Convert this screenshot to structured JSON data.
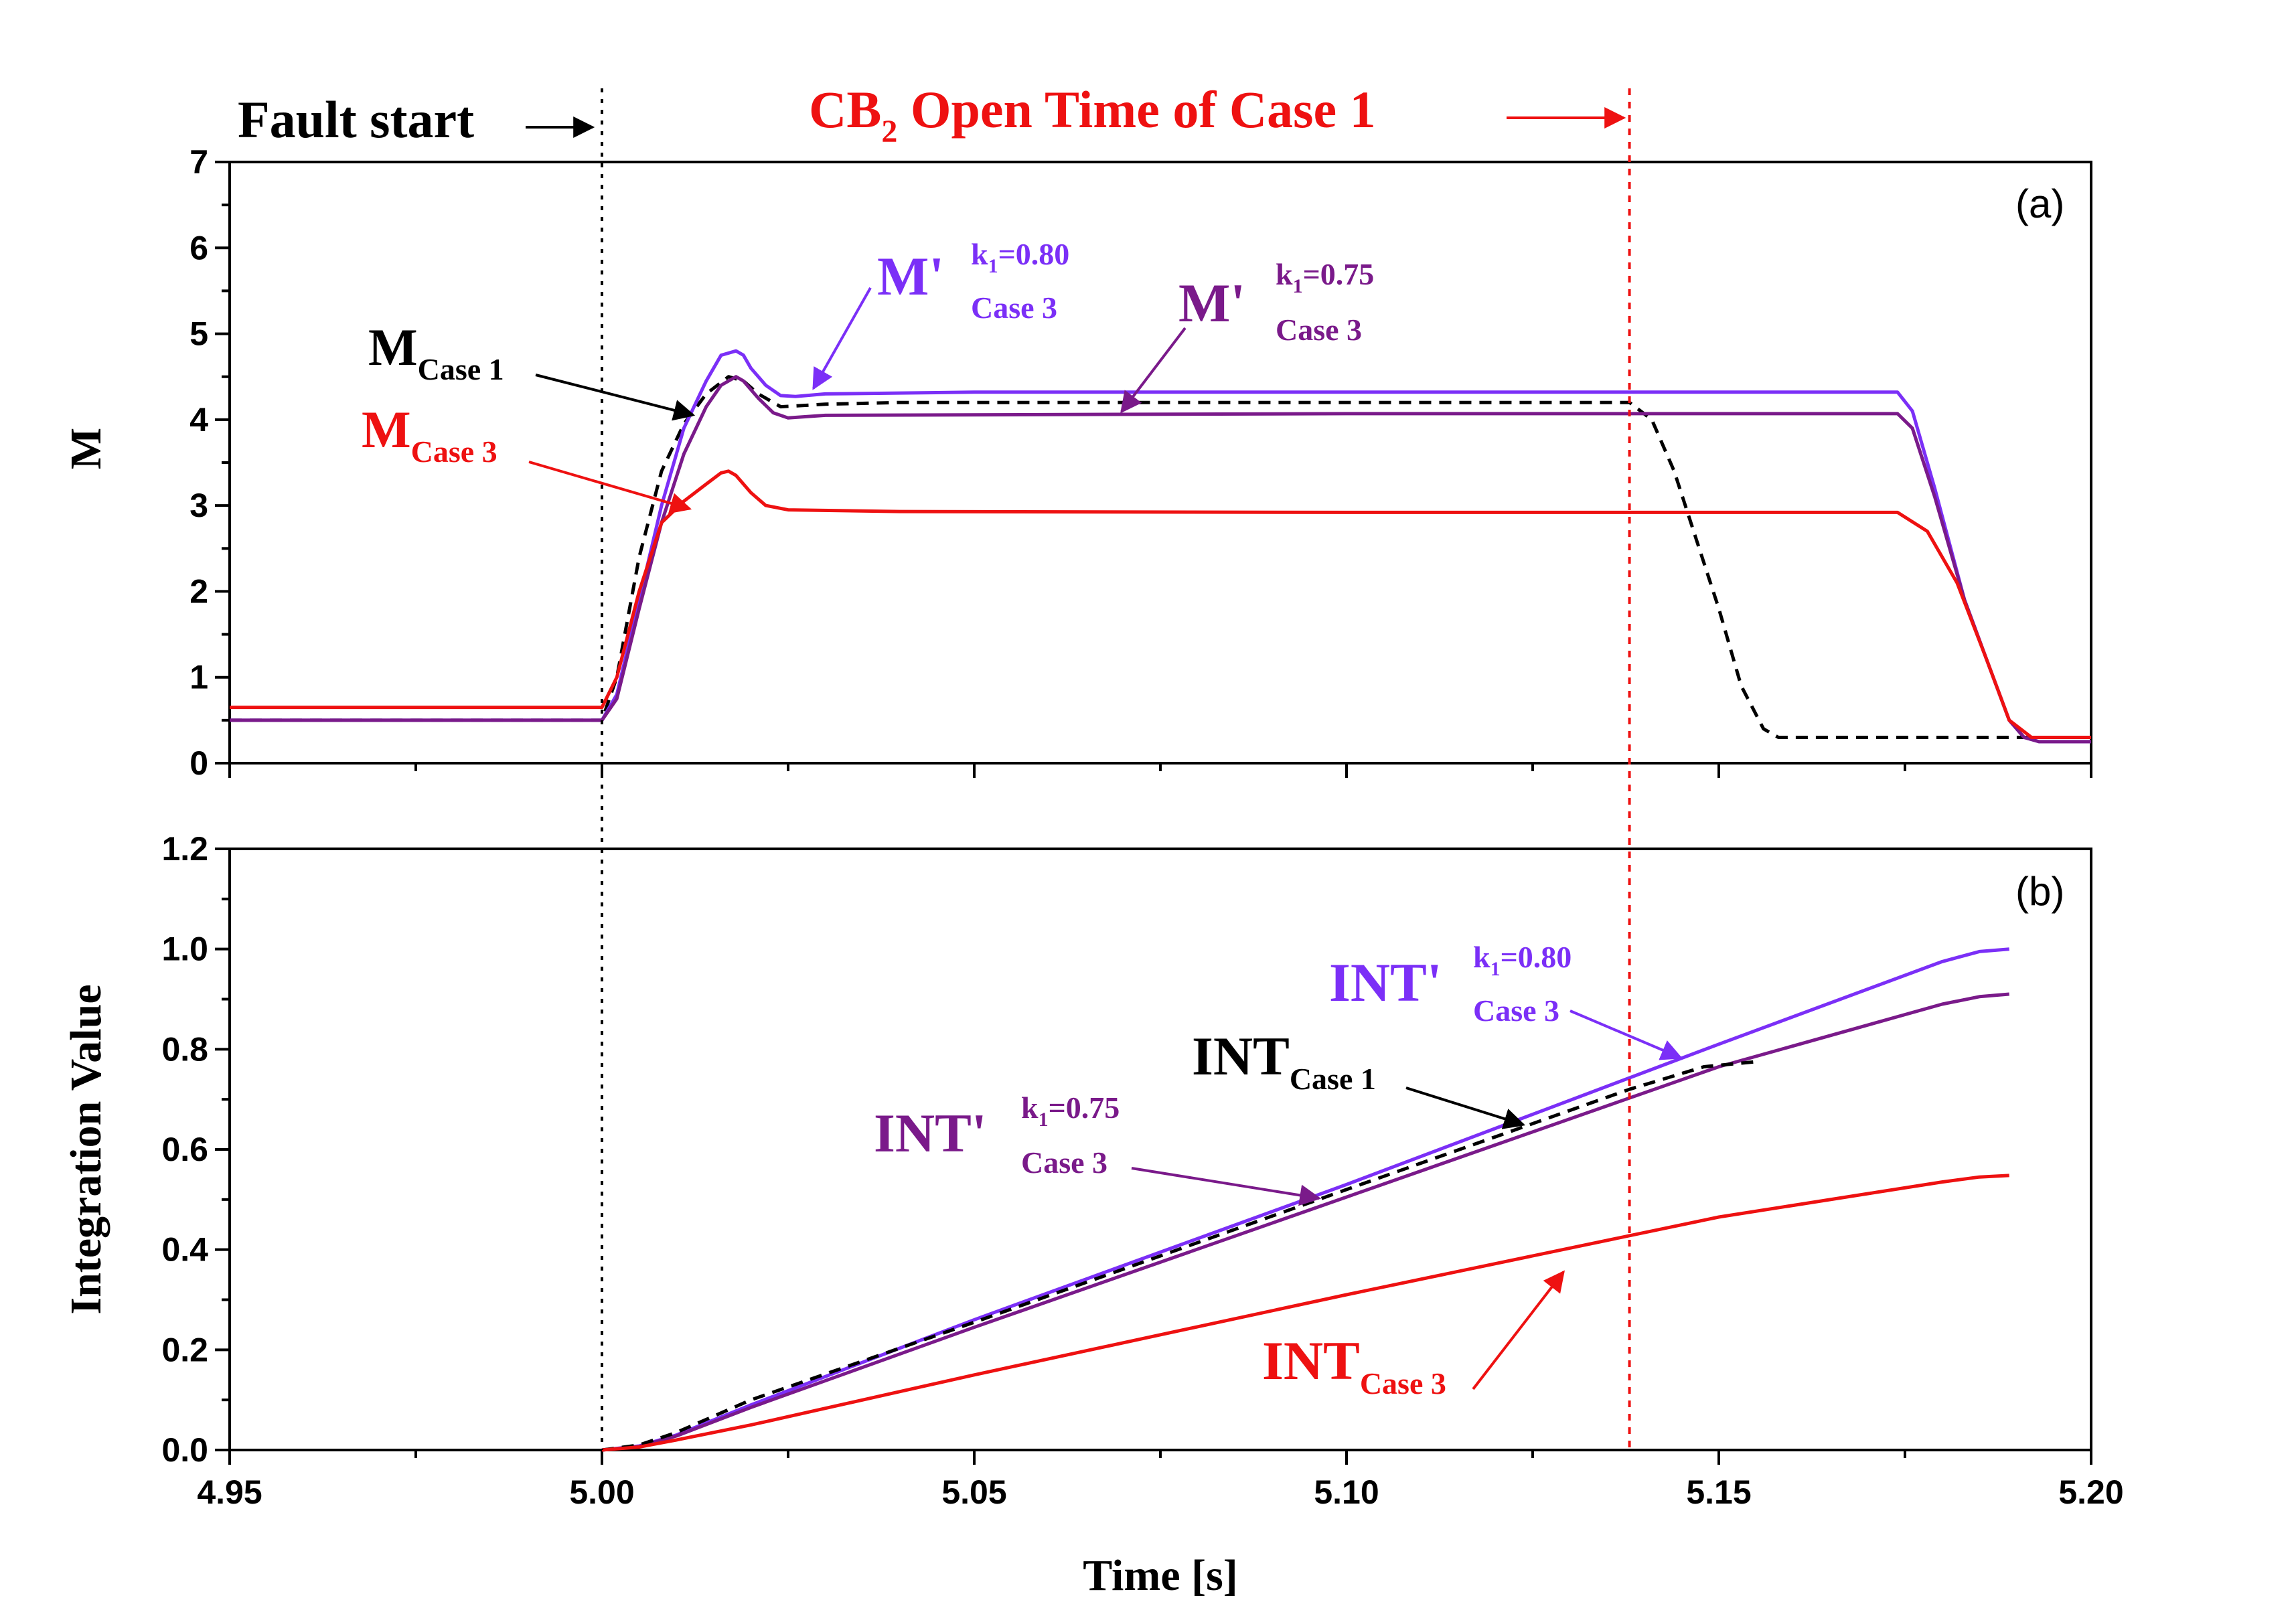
{
  "chart_data": [
    {
      "panel": "(a)",
      "type": "line",
      "xlabel": "",
      "ylabel": "M",
      "xlim": [
        4.95,
        5.2
      ],
      "ylim": [
        0,
        7
      ],
      "yticks": [
        "0",
        "1",
        "2",
        "3",
        "4",
        "5",
        "6",
        "7"
      ],
      "grid": false,
      "series": [
        {
          "id": "m_case1",
          "color": "#000000",
          "dash": true,
          "x": [
            4.95,
            5.0,
            5.002,
            5.005,
            5.008,
            5.011,
            5.014,
            5.017,
            5.019,
            5.021,
            5.024,
            5.03,
            5.04,
            5.1,
            5.138,
            5.141,
            5.144,
            5.147,
            5.15,
            5.153,
            5.156,
            5.158,
            5.2
          ],
          "y": [
            0.5,
            0.5,
            1.0,
            2.4,
            3.4,
            3.95,
            4.3,
            4.5,
            4.45,
            4.3,
            4.15,
            4.18,
            4.2,
            4.2,
            4.2,
            4.0,
            3.4,
            2.6,
            1.8,
            0.9,
            0.4,
            0.3,
            0.3
          ]
        },
        {
          "id": "m_prime_080",
          "color": "#7b2ff7",
          "dash": false,
          "x": [
            4.95,
            5.0,
            5.002,
            5.005,
            5.008,
            5.011,
            5.014,
            5.016,
            5.018,
            5.019,
            5.02,
            5.022,
            5.024,
            5.026,
            5.03,
            5.05,
            5.1,
            5.174,
            5.176,
            5.179,
            5.183,
            5.186,
            5.189,
            5.191,
            5.193,
            5.2
          ],
          "y": [
            0.5,
            0.5,
            0.8,
            1.9,
            3.0,
            3.9,
            4.45,
            4.75,
            4.8,
            4.75,
            4.6,
            4.4,
            4.28,
            4.27,
            4.3,
            4.32,
            4.32,
            4.32,
            4.1,
            3.2,
            1.9,
            1.2,
            0.5,
            0.3,
            0.25,
            0.25
          ]
        },
        {
          "id": "m_prime_075",
          "color": "#7a1a8a",
          "dash": false,
          "x": [
            4.95,
            5.0,
            5.002,
            5.005,
            5.008,
            5.011,
            5.014,
            5.016,
            5.018,
            5.019,
            5.021,
            5.023,
            5.025,
            5.03,
            5.1,
            5.174,
            5.176,
            5.179,
            5.183,
            5.186,
            5.189,
            5.191,
            5.193,
            5.2
          ],
          "y": [
            0.5,
            0.5,
            0.75,
            1.8,
            2.8,
            3.6,
            4.15,
            4.4,
            4.5,
            4.45,
            4.25,
            4.08,
            4.02,
            4.05,
            4.07,
            4.07,
            3.9,
            3.1,
            1.9,
            1.2,
            0.5,
            0.3,
            0.25,
            0.25
          ]
        },
        {
          "id": "m_case3",
          "color": "#ee1111",
          "dash": false,
          "x": [
            4.95,
            5.0,
            5.002,
            5.005,
            5.008,
            5.011,
            5.014,
            5.016,
            5.017,
            5.018,
            5.02,
            5.022,
            5.025,
            5.04,
            5.1,
            5.174,
            5.178,
            5.182,
            5.186,
            5.189,
            5.192,
            5.2
          ],
          "y": [
            0.65,
            0.65,
            1.0,
            2.0,
            2.8,
            3.05,
            3.25,
            3.38,
            3.4,
            3.35,
            3.15,
            3.0,
            2.95,
            2.93,
            2.92,
            2.92,
            2.7,
            2.1,
            1.2,
            0.5,
            0.3,
            0.3
          ]
        }
      ]
    },
    {
      "panel": "(b)",
      "type": "line",
      "xlabel": "Time [s]",
      "ylabel": "Integration Value",
      "xlim": [
        4.95,
        5.2
      ],
      "ylim": [
        0,
        1.2
      ],
      "xticks": [
        "4.95",
        "5.00",
        "5.05",
        "5.10",
        "5.15",
        "5.20"
      ],
      "yticks": [
        "0.0",
        "0.2",
        "0.4",
        "0.6",
        "0.8",
        "1.0",
        "1.2"
      ],
      "grid": false,
      "series": [
        {
          "id": "int_prime_080",
          "color": "#7b2ff7",
          "dash": false,
          "x": [
            5.0,
            5.005,
            5.01,
            5.02,
            5.05,
            5.1,
            5.15,
            5.18,
            5.185,
            5.189
          ],
          "y": [
            0.0,
            0.008,
            0.03,
            0.09,
            0.26,
            0.53,
            0.81,
            0.975,
            0.995,
            1.0
          ]
        },
        {
          "id": "int_prime_075",
          "color": "#7a1a8a",
          "dash": false,
          "x": [
            5.0,
            5.005,
            5.01,
            5.02,
            5.05,
            5.1,
            5.15,
            5.18,
            5.185,
            5.189
          ],
          "y": [
            0.0,
            0.007,
            0.028,
            0.085,
            0.245,
            0.505,
            0.765,
            0.89,
            0.905,
            0.91
          ]
        },
        {
          "id": "int_case1",
          "color": "#000000",
          "dash": true,
          "x": [
            5.0,
            5.005,
            5.01,
            5.02,
            5.05,
            5.1,
            5.138,
            5.148,
            5.155
          ],
          "y": [
            0.0,
            0.01,
            0.035,
            0.1,
            0.255,
            0.52,
            0.72,
            0.765,
            0.775
          ]
        },
        {
          "id": "int_case3",
          "color": "#ee1111",
          "dash": false,
          "x": [
            5.0,
            5.005,
            5.01,
            5.02,
            5.05,
            5.1,
            5.15,
            5.18,
            5.185,
            5.189
          ],
          "y": [
            0.0,
            0.006,
            0.02,
            0.05,
            0.15,
            0.31,
            0.465,
            0.535,
            0.545,
            0.548
          ]
        }
      ]
    }
  ],
  "markers": {
    "fault_start": {
      "x": 5.0,
      "label": "Fault start",
      "color": "#000000"
    },
    "cb2_open": {
      "x": 5.138,
      "label_main": "CB",
      "label_sub": "2",
      "label_rest": " Open Time of Case 1",
      "color": "#ee1111"
    }
  },
  "annotations_a": {
    "panel_tag": "(a)",
    "m_case1": {
      "main": "M",
      "sub": "Case 1"
    },
    "m_case3": {
      "main": "M",
      "sub": "Case 3"
    },
    "m_prime_080": {
      "main": "M'",
      "k": "k",
      "k_sub": "1",
      "k_val": "=0.80",
      "case": "Case 3"
    },
    "m_prime_075": {
      "main": "M'",
      "k": "k",
      "k_sub": "1",
      "k_val": "=0.75",
      "case": "Case 3"
    }
  },
  "annotations_b": {
    "panel_tag": "(b)",
    "int_case1": {
      "main": "INT",
      "sub": "Case 1"
    },
    "int_case3": {
      "main": "INT",
      "sub": "Case 3"
    },
    "int_prime_080": {
      "main": "INT'",
      "k": "k",
      "k_sub": "1",
      "k_val": "=0.80",
      "case": "Case 3"
    },
    "int_prime_075": {
      "main": "INT'",
      "k": "k",
      "k_sub": "1",
      "k_val": "=0.75",
      "case": "Case 3"
    }
  }
}
